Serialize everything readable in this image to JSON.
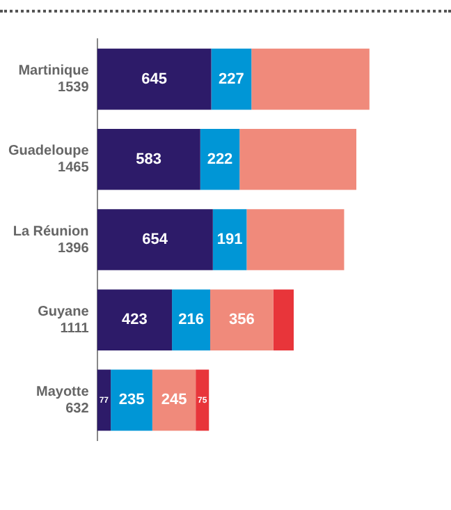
{
  "chart_data": {
    "type": "bar",
    "orientation": "horizontal",
    "stacked": true,
    "categories": [
      "Martinique",
      "Guadeloupe",
      "La Réunion",
      "Guyane",
      "Mayotte"
    ],
    "totals": [
      "1539",
      "1465",
      "1396",
      "1111",
      "632"
    ],
    "series": [
      {
        "color": "#2d1b69",
        "values": [
          645,
          583,
          654,
          423,
          77
        ],
        "value_labels": [
          "645",
          "583",
          "654",
          "423",
          "77"
        ]
      },
      {
        "color": "#0096d6",
        "values": [
          227,
          222,
          191,
          216,
          235
        ],
        "value_labels": [
          "227",
          "222",
          "191",
          "216",
          "235"
        ]
      },
      {
        "color": "#f08a7b",
        "values": [
          667,
          660,
          551,
          356,
          245
        ],
        "value_labels": [
          null,
          null,
          null,
          "356",
          "245"
        ]
      },
      {
        "color": "#e8353a",
        "values": [
          null,
          null,
          null,
          116,
          75
        ],
        "value_labels": [
          null,
          null,
          null,
          null,
          "75"
        ]
      }
    ],
    "tick_labels": "y",
    "grid": false,
    "legend": false
  }
}
